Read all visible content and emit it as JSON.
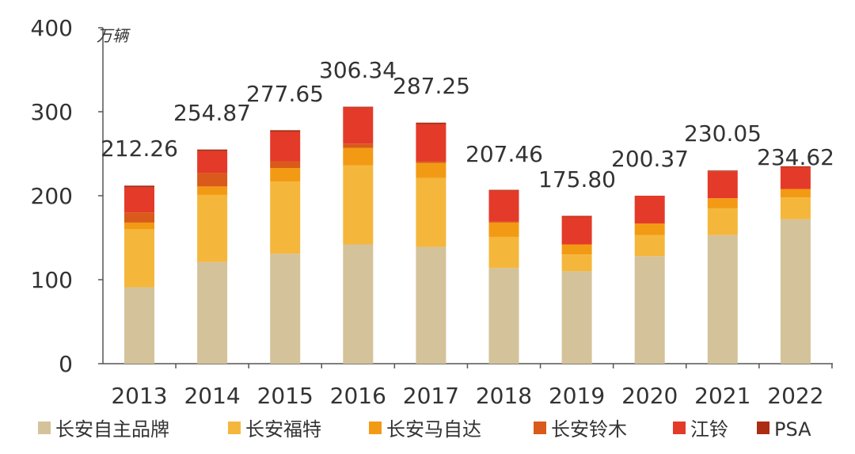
{
  "chart_data": {
    "type": "bar",
    "stacked": true,
    "title": "",
    "xlabel": "",
    "ylabel": "万辆",
    "ylim": [
      0,
      400
    ],
    "yticks": [
      0,
      100,
      200,
      300,
      400
    ],
    "grid": false,
    "legend_position": "bottom",
    "categories": [
      "2013",
      "2014",
      "2015",
      "2016",
      "2017",
      "2018",
      "2019",
      "2020",
      "2021",
      "2022"
    ],
    "totals": [
      "212.26",
      "254.87",
      "277.65",
      "306.34",
      "287.25",
      "207.46",
      "175.80",
      "200.37",
      "230.05",
      "234.62"
    ],
    "series": [
      {
        "name": "长安自主品牌",
        "color": "#d4c29a",
        "values": [
          91,
          121,
          131,
          142,
          139,
          114,
          110,
          128,
          153,
          172
        ]
      },
      {
        "name": "长安福特",
        "color": "#f4b73c",
        "values": [
          69,
          80,
          86,
          94,
          82,
          37,
          20,
          25,
          32,
          26
        ]
      },
      {
        "name": "长安马自达",
        "color": "#f39a14",
        "values": [
          8,
          10,
          16,
          21,
          18,
          17,
          12,
          14,
          12,
          10
        ]
      },
      {
        "name": "长安铃木",
        "color": "#d95a1a",
        "values": [
          12,
          16,
          8,
          5,
          2,
          1,
          0,
          0,
          0,
          0
        ]
      },
      {
        "name": "江铃",
        "color": "#e43a2a",
        "values": [
          30,
          26,
          35,
          43,
          44,
          37,
          33,
          33,
          32,
          26
        ]
      },
      {
        "name": "PSA",
        "color": "#ab2e12",
        "values": [
          2,
          2,
          2,
          1,
          2,
          1,
          1,
          0,
          1,
          1
        ]
      }
    ]
  }
}
